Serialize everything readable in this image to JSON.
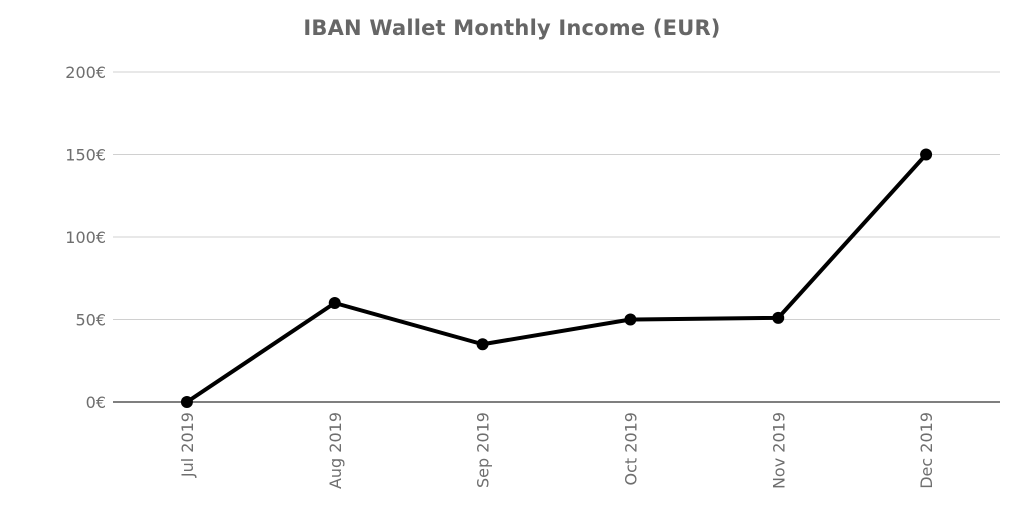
{
  "chart_data": {
    "type": "line",
    "title": "IBAN Wallet Monthly Income (EUR)",
    "xlabel": "",
    "ylabel": "",
    "categories": [
      "Jul 2019",
      "Aug 2019",
      "Sep 2019",
      "Oct 2019",
      "Nov 2019",
      "Dec 2019"
    ],
    "series": [
      {
        "name": "Monthly Income (EUR)",
        "values": [
          0,
          60,
          35,
          50,
          51,
          150
        ]
      }
    ],
    "yticks": [
      0,
      50,
      100,
      150,
      200
    ],
    "ytick_labels": [
      "0€",
      "50€",
      "100€",
      "150€",
      "200€"
    ],
    "ylim": [
      0,
      200
    ],
    "grid": true,
    "legend": "none",
    "colors": {
      "line": "#000000",
      "grid": "#d0d0d0",
      "axis": "#333333",
      "text": "#6e6e6e",
      "title": "#666666"
    }
  }
}
